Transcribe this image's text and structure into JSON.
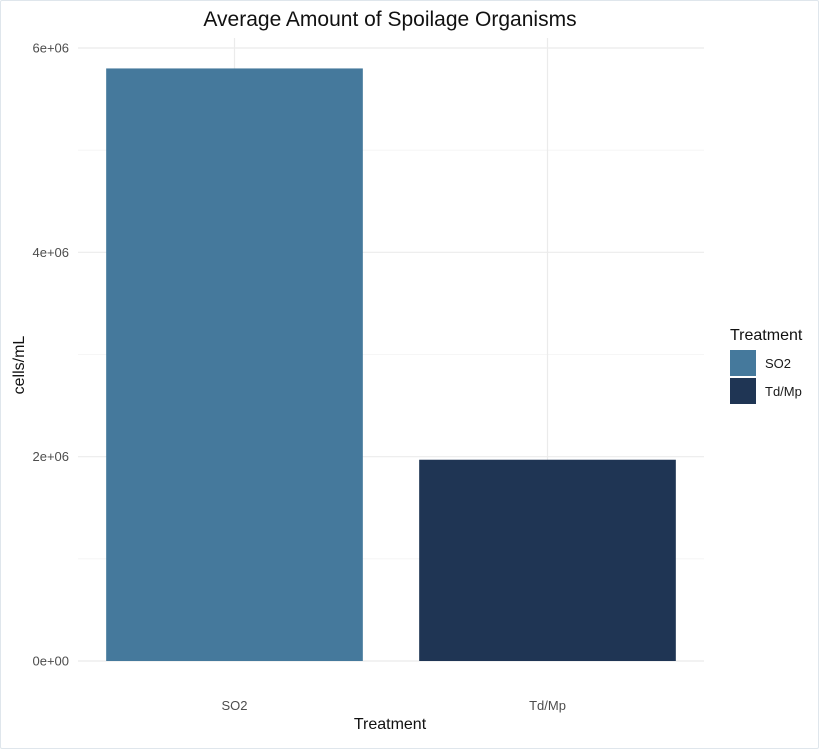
{
  "chart_data": {
    "type": "bar",
    "title": "Average Amount of Spoilage Organisms",
    "xlabel": "Treatment",
    "ylabel": "cells/mL",
    "categories": [
      "SO2",
      "Td/Mp"
    ],
    "values": [
      5800000,
      1970000
    ],
    "colors": [
      "#45799c",
      "#1f3554"
    ],
    "ylim": [
      0,
      6000000
    ],
    "yticks": [
      0,
      2000000,
      4000000,
      6000000
    ],
    "ytick_labels": [
      "0e+00",
      "2e+06",
      "4e+06",
      "6e+06"
    ],
    "grid": true,
    "legend": {
      "title": "Treatment",
      "placement": "right",
      "items": [
        "SO2",
        "Td/Mp"
      ]
    }
  }
}
